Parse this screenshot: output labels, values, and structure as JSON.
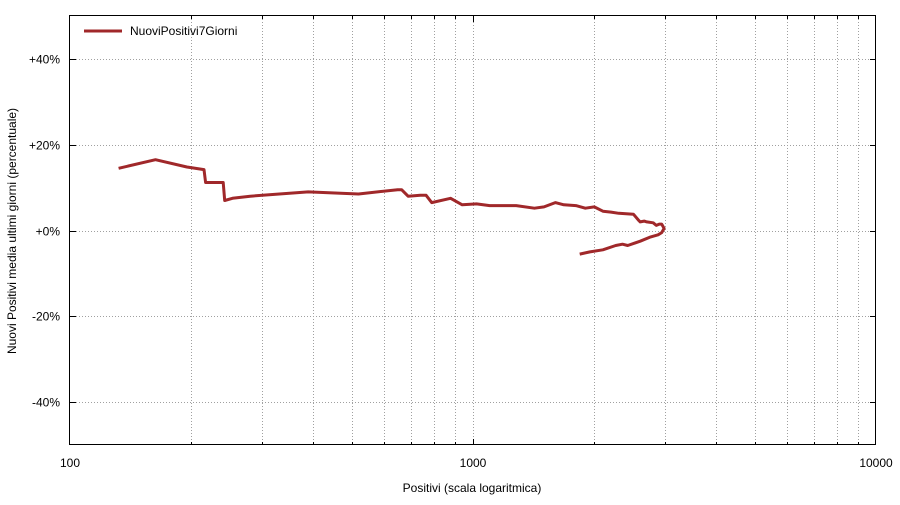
{
  "chart_data": {
    "type": "line",
    "xlabel": "Positivi (scala logaritmica)",
    "ylabel": "Nuovi Positivi media ultimi giorni (percentuale)",
    "x_scale": "log",
    "xlim": [
      100,
      10000
    ],
    "ylim": [
      -50,
      50
    ],
    "grid": true,
    "legend_position": "top-left",
    "x_ticks": [
      {
        "value": 100,
        "label": "100"
      },
      {
        "value": 1000,
        "label": "1000"
      },
      {
        "value": 10000,
        "label": "10000"
      }
    ],
    "y_ticks": [
      {
        "value": 40,
        "label": "+40%"
      },
      {
        "value": 20,
        "label": "+20%"
      },
      {
        "value": 0,
        "label": "+0%"
      },
      {
        "value": -20,
        "label": "-20%"
      },
      {
        "value": -40,
        "label": "-40%"
      }
    ],
    "series": [
      {
        "name": "NuoviPositivi7Giorni",
        "color": "#a0282a",
        "x": [
          132,
          163,
          195,
          215,
          217,
          240,
          242,
          253,
          280,
          390,
          520,
          650,
          665,
          690,
          740,
          765,
          790,
          880,
          940,
          1020,
          1100,
          1200,
          1280,
          1420,
          1500,
          1600,
          1680,
          1800,
          1900,
          2000,
          2100,
          2200,
          2300,
          2500,
          2580,
          2600,
          2660,
          2700,
          2800,
          2850,
          2900,
          2940,
          2980,
          2960,
          2940,
          2880,
          2760,
          2600,
          2420,
          2350,
          2260,
          2100,
          1950,
          1840
        ],
        "y": [
          14.5,
          16.5,
          14.8,
          14.2,
          11.2,
          11.2,
          7.0,
          7.5,
          8.0,
          9.0,
          8.5,
          9.5,
          9.5,
          8.0,
          8.2,
          8.2,
          6.5,
          7.5,
          6.0,
          6.2,
          5.8,
          5.8,
          5.8,
          5.2,
          5.5,
          6.5,
          6.0,
          5.8,
          5.2,
          5.5,
          4.5,
          4.3,
          4.0,
          3.8,
          2.3,
          2.0,
          2.2,
          2.0,
          1.8,
          1.2,
          1.5,
          1.5,
          0.5,
          0.0,
          -0.5,
          -1.0,
          -1.5,
          -2.5,
          -3.5,
          -3.2,
          -3.5,
          -4.5,
          -5.0,
          -5.5
        ]
      }
    ]
  }
}
